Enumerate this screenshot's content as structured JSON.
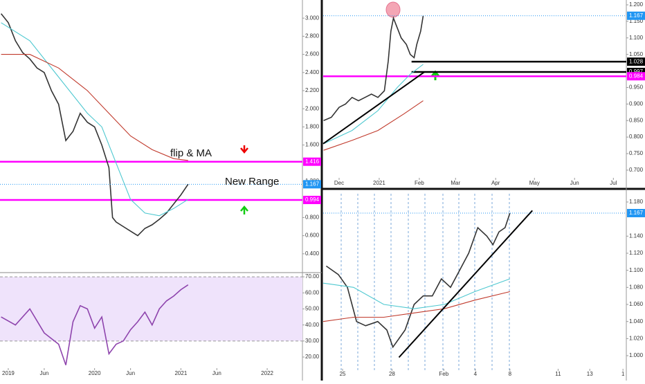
{
  "chart_data": [
    {
      "type": "line",
      "annotations": [
        "flip & MA",
        "New Range"
      ],
      "xlim": [
        -1.15,
        40.9
      ],
      "ylim": [
        0.2,
        3.2
      ],
      "xticks": [
        {
          "value": 0,
          "label": "2019"
        },
        {
          "value": 5,
          "label": "Jun"
        },
        {
          "value": 12,
          "label": "2020"
        },
        {
          "value": 17,
          "label": "Jun"
        },
        {
          "value": 24,
          "label": "2021"
        },
        {
          "value": 29,
          "label": "Jun"
        },
        {
          "value": 36,
          "label": "2022"
        }
      ],
      "yticks": [
        {
          "value": 3,
          "label": "3.000"
        },
        {
          "value": 2.8,
          "label": "2.800"
        },
        {
          "value": 2.6,
          "label": "2.600"
        },
        {
          "value": 2.4,
          "label": "2.400"
        },
        {
          "value": 2.2,
          "label": "2.200"
        },
        {
          "value": 2,
          "label": "2.000"
        },
        {
          "value": 1.8,
          "label": "1.800"
        },
        {
          "value": 1.6,
          "label": "1.600"
        },
        {
          "value": 1.2,
          "label": "1.200"
        },
        {
          "value": 0.8,
          "label": "0.800"
        },
        {
          "value": 0.6,
          "label": "0.600"
        },
        {
          "value": 0.4,
          "label": "0.400"
        }
      ],
      "series": [
        {
          "color": "#333333",
          "x": [
            -1,
            0,
            1,
            2,
            3,
            4,
            5,
            6,
            7,
            8,
            9,
            10,
            11,
            12,
            13,
            14,
            14.5,
            15,
            16,
            17,
            18,
            19,
            20,
            21,
            22,
            23,
            24,
            25
          ],
          "values": [
            3.05,
            2.95,
            2.75,
            2.62,
            2.55,
            2.45,
            2.4,
            2.2,
            2.05,
            1.65,
            1.75,
            1.95,
            1.85,
            1.8,
            1.6,
            1.35,
            0.8,
            0.75,
            0.7,
            0.65,
            0.6,
            0.68,
            0.72,
            0.78,
            0.85,
            0.95,
            1.05,
            1.167
          ]
        },
        {
          "color": "#4dc8d0",
          "x": [
            -1,
            3,
            7,
            11,
            13,
            15,
            17,
            19,
            21,
            23,
            25
          ],
          "values": [
            2.95,
            2.75,
            2.35,
            1.95,
            1.8,
            1.4,
            1.0,
            0.85,
            0.82,
            0.9,
            1.0
          ]
        },
        {
          "color": "#c0392b",
          "x": [
            -1,
            3,
            7,
            11,
            14,
            17,
            20,
            23,
            25
          ],
          "values": [
            2.6,
            2.6,
            2.45,
            2.2,
            1.95,
            1.7,
            1.55,
            1.45,
            1.43
          ]
        }
      ],
      "levels": [
        {
          "value": 1.416,
          "label": "1.416",
          "color": "#ff00ff"
        },
        {
          "value": 0.994,
          "label": "0.994",
          "color": "#ff00ff"
        }
      ],
      "last": {
        "value": 1.167,
        "label": "1.167"
      }
    },
    {
      "type": "line",
      "xlim": [
        -1.15,
        40.9
      ],
      "ylim": [
        7.5,
        72.2
      ],
      "band": [
        30,
        70
      ],
      "yticks": [
        {
          "value": 70,
          "label": "70.00"
        },
        {
          "value": 60,
          "label": "60.00"
        },
        {
          "value": 50,
          "label": "50.00"
        },
        {
          "value": 40,
          "label": "40.00"
        },
        {
          "value": 30,
          "label": "30.00"
        },
        {
          "value": 20,
          "label": "20.00"
        }
      ],
      "series": [
        {
          "color": "#8e44ad",
          "x": [
            -1,
            1,
            3,
            5,
            7,
            8,
            9,
            10,
            11,
            12,
            13,
            14,
            15,
            16,
            17,
            18,
            19,
            20,
            21,
            22,
            23,
            24,
            25
          ],
          "values": [
            45,
            40,
            50,
            35,
            28,
            15,
            42,
            52,
            50,
            38,
            45,
            22,
            28,
            30,
            37,
            42,
            48,
            40,
            50,
            55,
            58,
            62,
            65
          ]
        }
      ]
    },
    {
      "type": "line",
      "xlim": [
        -12.3,
        222
      ],
      "ylim": [
        0.681,
        1.2146
      ],
      "xticks": [
        {
          "value": 0,
          "label": "Dec"
        },
        {
          "value": 31,
          "label": "2021"
        },
        {
          "value": 62,
          "label": "Feb"
        },
        {
          "value": 90,
          "label": "Mar"
        },
        {
          "value": 121,
          "label": "Apr"
        },
        {
          "value": 151,
          "label": "May"
        },
        {
          "value": 182,
          "label": "Jun"
        },
        {
          "value": 212,
          "label": "Jul"
        }
      ],
      "yticks": [
        {
          "value": 1.2,
          "label": "1.200"
        },
        {
          "value": 1.15,
          "label": "1.150"
        },
        {
          "value": 1.1,
          "label": "1.100"
        },
        {
          "value": 1.05,
          "label": "1.050"
        },
        {
          "value": 0.95,
          "label": "0.950"
        },
        {
          "value": 0.9,
          "label": "0.900"
        },
        {
          "value": 0.85,
          "label": "0.850"
        },
        {
          "value": 0.8,
          "label": "0.800"
        },
        {
          "value": 0.75,
          "label": "0.750"
        },
        {
          "value": 0.7,
          "label": "0.700"
        }
      ],
      "series": [
        {
          "color": "#333333",
          "x": [
            -12,
            -6,
            0,
            5,
            10,
            15,
            20,
            25,
            30,
            35,
            38,
            40,
            42,
            45,
            48,
            52,
            55,
            58,
            60,
            63,
            65
          ],
          "values": [
            0.85,
            0.86,
            0.89,
            0.9,
            0.92,
            0.91,
            0.92,
            0.93,
            0.92,
            0.94,
            1.03,
            1.12,
            1.16,
            1.13,
            1.1,
            1.08,
            1.05,
            1.04,
            1.08,
            1.12,
            1.167
          ]
        },
        {
          "color": "#4dc8d0",
          "x": [
            -12,
            10,
            30,
            45,
            55,
            65
          ],
          "values": [
            0.78,
            0.82,
            0.88,
            0.95,
            0.99,
            1.02
          ]
        },
        {
          "color": "#c0392b",
          "x": [
            -12,
            10,
            30,
            50,
            65
          ],
          "values": [
            0.76,
            0.79,
            0.82,
            0.87,
            0.91
          ]
        }
      ],
      "trendlines": [
        {
          "x": [
            -12.3,
            66
          ],
          "y": [
            0.78,
            0.997
          ]
        }
      ],
      "levels": [
        {
          "value": 1.028,
          "label": "1.028",
          "color": "#000000",
          "from": 56
        },
        {
          "value": 0.997,
          "label": "0.997",
          "color": "#000000",
          "from": 56
        },
        {
          "value": 0.984,
          "label": "0.984",
          "color": "#ff00ff"
        }
      ],
      "last": {
        "value": 1.167,
        "label": "1.167"
      }
    },
    {
      "type": "line",
      "xlim": [
        0,
        100
      ],
      "ylim": [
        0.983,
        1.1897
      ],
      "xticks": [
        {
          "value": 6.4,
          "label": "25"
        },
        {
          "value": 22.7,
          "label": "28"
        },
        {
          "value": 39.8,
          "label": "Feb"
        },
        {
          "value": 50.2,
          "label": "4"
        },
        {
          "value": 61.6,
          "label": "8"
        },
        {
          "value": 77.5,
          "label": "11"
        },
        {
          "value": 87.95,
          "label": "13"
        },
        {
          "value": 98.9,
          "label": "1"
        }
      ],
      "yticks": [
        {
          "value": 1.18,
          "label": "1.180"
        },
        {
          "value": 1.14,
          "label": "1.140"
        },
        {
          "value": 1.12,
          "label": "1.120"
        },
        {
          "value": 1.1,
          "label": "1.100"
        },
        {
          "value": 1.08,
          "label": "1.080"
        },
        {
          "value": 1.06,
          "label": "1.060"
        },
        {
          "value": 1.04,
          "label": "1.040"
        },
        {
          "value": 1.02,
          "label": "1.020"
        },
        {
          "value": 1,
          "label": "1.000"
        }
      ],
      "series": [
        {
          "color": "#333333",
          "x": [
            1,
            5,
            8,
            11,
            14,
            18,
            21,
            23,
            25,
            27,
            30,
            33,
            36,
            39,
            42,
            45,
            48,
            51,
            54,
            56,
            58,
            60,
            61.6
          ],
          "values": [
            1.105,
            1.095,
            1.08,
            1.04,
            1.035,
            1.04,
            1.03,
            1.01,
            1.02,
            1.03,
            1.06,
            1.07,
            1.07,
            1.09,
            1.08,
            1.1,
            1.12,
            1.15,
            1.14,
            1.13,
            1.145,
            1.15,
            1.167
          ]
        },
        {
          "color": "#4dc8d0",
          "x": [
            0,
            10,
            20,
            30,
            40,
            50,
            61.6
          ],
          "values": [
            1.085,
            1.08,
            1.06,
            1.055,
            1.06,
            1.075,
            1.09
          ]
        },
        {
          "color": "#c0392b",
          "x": [
            0,
            10,
            20,
            30,
            40,
            50,
            61.6
          ],
          "values": [
            1.04,
            1.045,
            1.045,
            1.05,
            1.055,
            1.065,
            1.075
          ]
        }
      ],
      "trendlines": [
        {
          "x": [
            25,
            69
          ],
          "y": [
            0.998,
            1.17
          ]
        }
      ],
      "last": {
        "value": 1.167,
        "label": "1.167"
      }
    }
  ]
}
